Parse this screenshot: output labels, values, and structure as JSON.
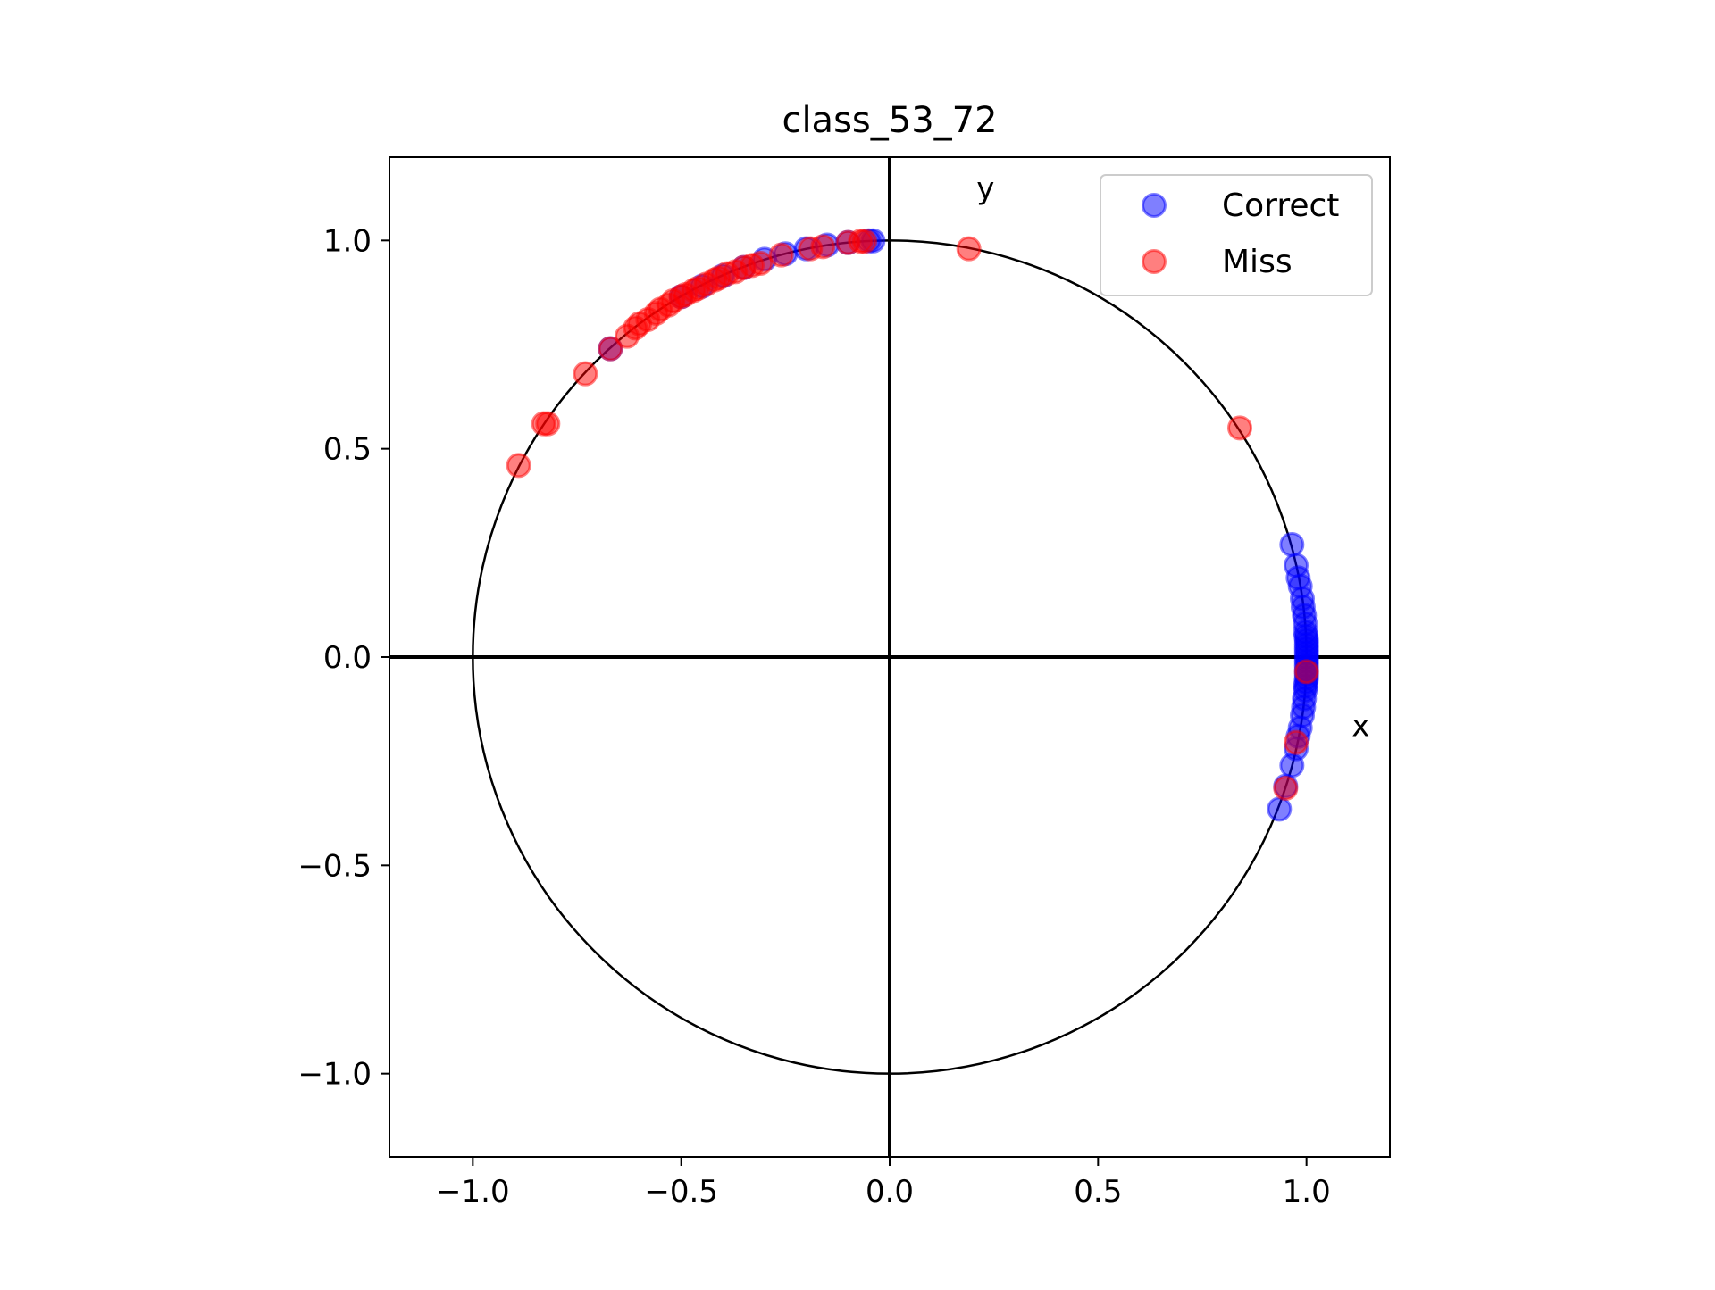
{
  "chart_data": {
    "type": "scatter",
    "title": "class_53_72",
    "xlabel": "",
    "ylabel": "",
    "xlim": [
      -1.2,
      1.2
    ],
    "ylim": [
      -1.2,
      1.2
    ],
    "x_ticks": [
      -1.0,
      -0.5,
      0.0,
      0.5,
      1.0
    ],
    "y_ticks": [
      -1.0,
      -0.5,
      0.0,
      0.5,
      1.0
    ],
    "x_tick_labels": [
      "−1.0",
      "−0.5",
      "0.0",
      "0.5",
      "1.0"
    ],
    "y_tick_labels": [
      "−1.0",
      "−0.5",
      "0.0",
      "0.5",
      "1.0"
    ],
    "grid": false,
    "unit_circle": true,
    "axis_lines": true,
    "axis_annotations": {
      "x": "x",
      "y": "y"
    },
    "legend": {
      "position": "top-right"
    },
    "series": [
      {
        "name": "Correct",
        "color": "#0000ff",
        "opacity": 0.5,
        "points": [
          [
            0.965,
            0.27
          ],
          [
            0.975,
            0.22
          ],
          [
            0.98,
            0.19
          ],
          [
            0.985,
            0.17
          ],
          [
            0.99,
            0.14
          ],
          [
            0.992,
            0.12
          ],
          [
            0.995,
            0.1
          ],
          [
            0.997,
            0.08
          ],
          [
            0.998,
            0.06
          ],
          [
            0.999,
            0.05
          ],
          [
            1.0,
            0.04
          ],
          [
            1.0,
            0.03
          ],
          [
            1.0,
            0.02
          ],
          [
            1.0,
            0.01
          ],
          [
            1.0,
            0.0
          ],
          [
            1.0,
            -0.01
          ],
          [
            1.0,
            -0.02
          ],
          [
            1.0,
            -0.03
          ],
          [
            1.0,
            -0.04
          ],
          [
            1.0,
            -0.05
          ],
          [
            0.999,
            -0.06
          ],
          [
            0.998,
            -0.07
          ],
          [
            0.997,
            -0.08
          ],
          [
            0.995,
            -0.1
          ],
          [
            0.993,
            -0.12
          ],
          [
            0.99,
            -0.14
          ],
          [
            0.985,
            -0.17
          ],
          [
            0.98,
            -0.19
          ],
          [
            0.975,
            -0.22
          ],
          [
            0.965,
            -0.26
          ],
          [
            0.95,
            -0.31
          ],
          [
            0.935,
            -0.365
          ],
          [
            -0.67,
            0.74
          ],
          [
            -0.5,
            0.865
          ],
          [
            -0.45,
            0.89
          ],
          [
            -0.4,
            0.915
          ],
          [
            -0.35,
            0.935
          ],
          [
            -0.3,
            0.955
          ],
          [
            -0.25,
            0.968
          ],
          [
            -0.2,
            0.98
          ],
          [
            -0.15,
            0.989
          ],
          [
            -0.1,
            0.995
          ],
          [
            -0.05,
            0.999
          ],
          [
            -0.04,
            0.999
          ]
        ]
      },
      {
        "name": "Miss",
        "color": "#ff0000",
        "opacity": 0.5,
        "points": [
          [
            0.19,
            0.98
          ],
          [
            0.84,
            0.55
          ],
          [
            1.0,
            -0.035
          ],
          [
            0.975,
            -0.205
          ],
          [
            0.95,
            -0.315
          ],
          [
            -0.89,
            0.46
          ],
          [
            -0.83,
            0.56
          ],
          [
            -0.82,
            0.56
          ],
          [
            -0.73,
            0.68
          ],
          [
            -0.67,
            0.74
          ],
          [
            -0.63,
            0.77
          ],
          [
            -0.61,
            0.79
          ],
          [
            -0.6,
            0.8
          ],
          [
            -0.58,
            0.81
          ],
          [
            -0.56,
            0.825
          ],
          [
            -0.55,
            0.835
          ],
          [
            -0.53,
            0.845
          ],
          [
            -0.52,
            0.855
          ],
          [
            -0.5,
            0.865
          ],
          [
            -0.49,
            0.87
          ],
          [
            -0.47,
            0.88
          ],
          [
            -0.46,
            0.885
          ],
          [
            -0.44,
            0.895
          ],
          [
            -0.42,
            0.905
          ],
          [
            -0.41,
            0.91
          ],
          [
            -0.39,
            0.92
          ],
          [
            -0.37,
            0.925
          ],
          [
            -0.35,
            0.935
          ],
          [
            -0.33,
            0.94
          ],
          [
            -0.31,
            0.945
          ],
          [
            -0.26,
            0.965
          ],
          [
            -0.19,
            0.98
          ],
          [
            -0.16,
            0.985
          ],
          [
            -0.1,
            0.995
          ],
          [
            -0.07,
            0.998
          ],
          [
            -0.06,
            0.998
          ]
        ]
      }
    ]
  }
}
